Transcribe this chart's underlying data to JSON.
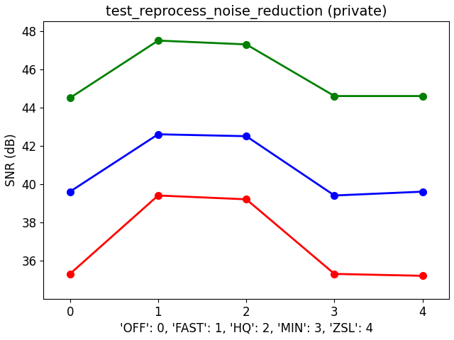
{
  "title": "test_reprocess_noise_reduction (private)",
  "xlabel": "'OFF': 0, 'FAST': 1, 'HQ': 2, 'MIN': 3, 'ZSL': 4",
  "ylabel": "SNR (dB)",
  "x": [
    0,
    1,
    2,
    3,
    4
  ],
  "green_y": [
    44.5,
    47.5,
    47.3,
    44.6,
    44.6
  ],
  "blue_y": [
    39.6,
    42.6,
    42.5,
    39.4,
    39.6
  ],
  "red_y": [
    35.3,
    39.4,
    39.2,
    35.3,
    35.2
  ],
  "green_color": "#008000",
  "blue_color": "#0000ff",
  "red_color": "#ff0000",
  "marker": "o",
  "linewidth": 2,
  "markersize": 7,
  "ylim": [
    34.0,
    48.5
  ],
  "yticks": [
    36,
    38,
    40,
    42,
    44,
    46,
    48
  ],
  "xticks": [
    0,
    1,
    2,
    3,
    4
  ],
  "title_fontsize": 14,
  "label_fontsize": 12,
  "tick_fontsize": 12,
  "xlabel_fontsize": 12,
  "background_color": "#ffffff"
}
